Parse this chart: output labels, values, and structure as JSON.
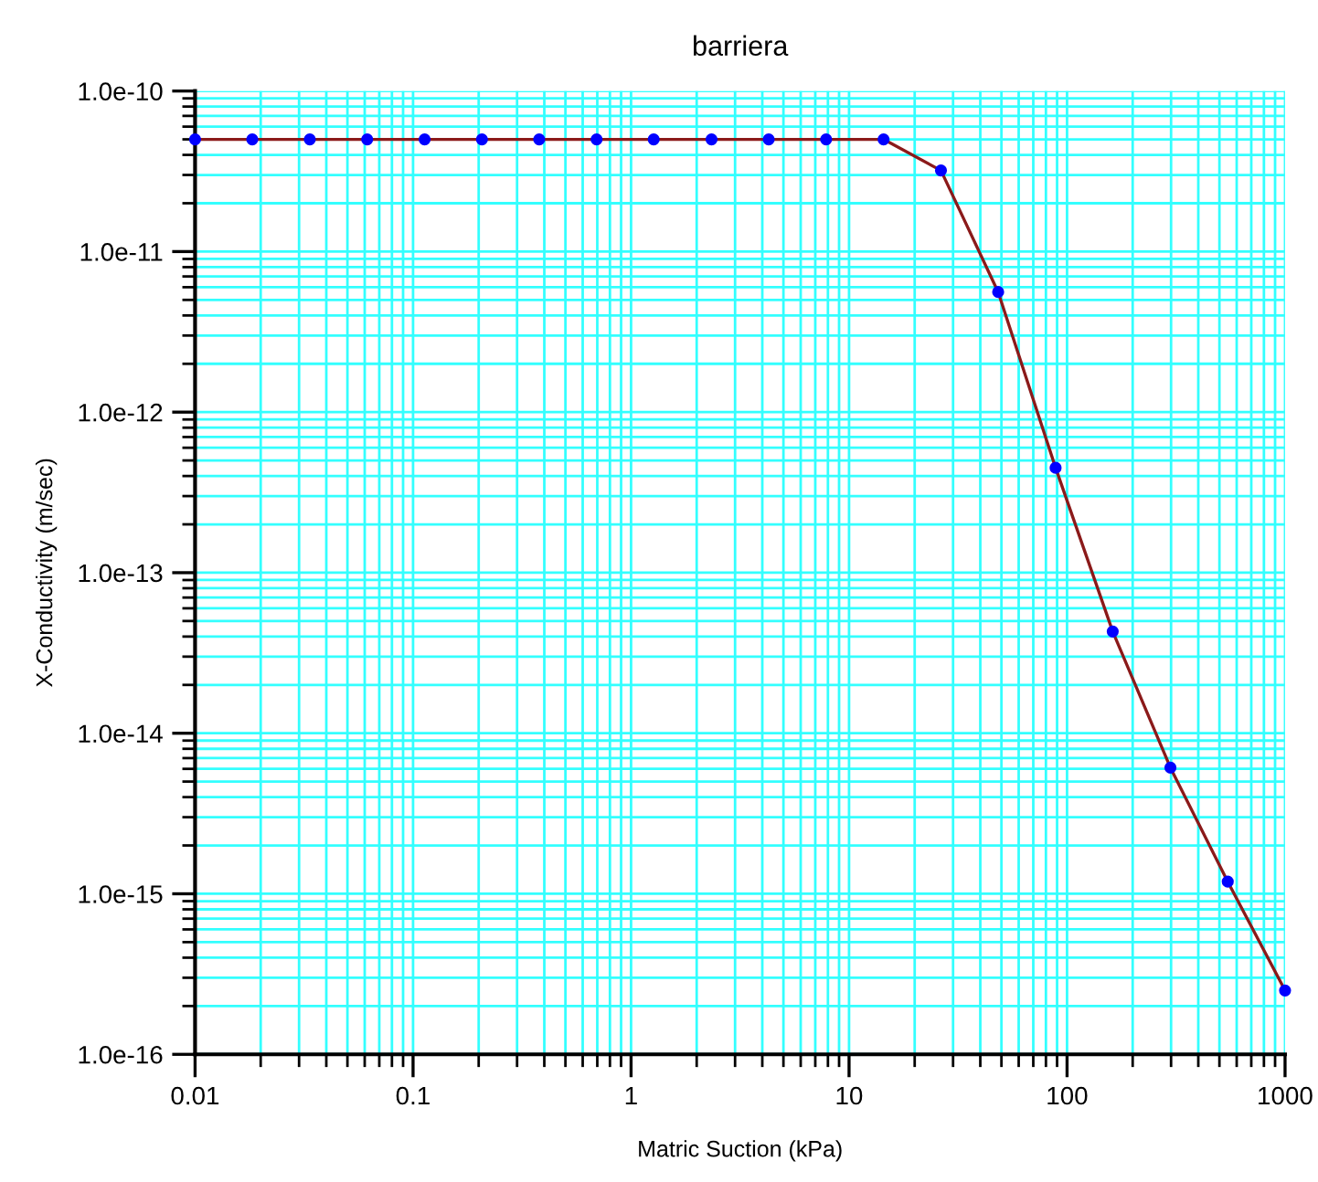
{
  "chart_data": {
    "type": "line",
    "title": "barriera",
    "xlabel": "Matric Suction (kPa)",
    "ylabel": "X-Conductivity (m/sec)",
    "log": "xy",
    "grid": true,
    "x": [
      0.01,
      0.0183,
      0.0336,
      0.0616,
      0.113,
      0.207,
      0.379,
      0.695,
      1.27,
      2.34,
      4.28,
      7.85,
      14.4,
      26.4,
      48.3,
      88.6,
      162,
      298,
      546,
      1000
    ],
    "series": [
      {
        "color": "#8b1a1a",
        "values": [
          5e-11,
          5e-11,
          5e-11,
          5e-11,
          5e-11,
          5e-11,
          5e-11,
          5e-11,
          5e-11,
          5e-11,
          5e-11,
          5e-11,
          5e-11,
          3.2e-11,
          5.6e-12,
          4.5e-13,
          4.3e-14,
          6.1e-15,
          1.19e-15,
          2.5e-16
        ]
      },
      {
        "type": "scatter",
        "marker": "circle",
        "color": "#0000ff",
        "values": [
          5e-11,
          5e-11,
          5e-11,
          5e-11,
          5e-11,
          5e-11,
          5e-11,
          5e-11,
          5e-11,
          5e-11,
          5e-11,
          5e-11,
          5e-11,
          3.2e-11,
          5.6e-12,
          4.5e-13,
          4.3e-14,
          6.1e-15,
          1.19e-15,
          2.5e-16
        ]
      }
    ],
    "xlim": [
      0.01,
      1000
    ],
    "xticks": [
      0.01,
      0.1,
      1,
      10,
      100,
      1000
    ],
    "ylim": [
      1e-16,
      1e-10
    ],
    "yticks": [
      {
        "value": 1e-16,
        "label": "1.0e-16"
      },
      {
        "value": 1e-15,
        "label": "1.0e-15"
      },
      {
        "value": 1e-14,
        "label": "1.0e-14"
      },
      {
        "value": 1e-13,
        "label": "1.0e-13"
      },
      {
        "value": 1e-12,
        "label": "1.0e-12"
      },
      {
        "value": 1e-11,
        "label": "1.0e-11"
      },
      {
        "value": 1e-10,
        "label": "1.0e-10"
      }
    ]
  }
}
